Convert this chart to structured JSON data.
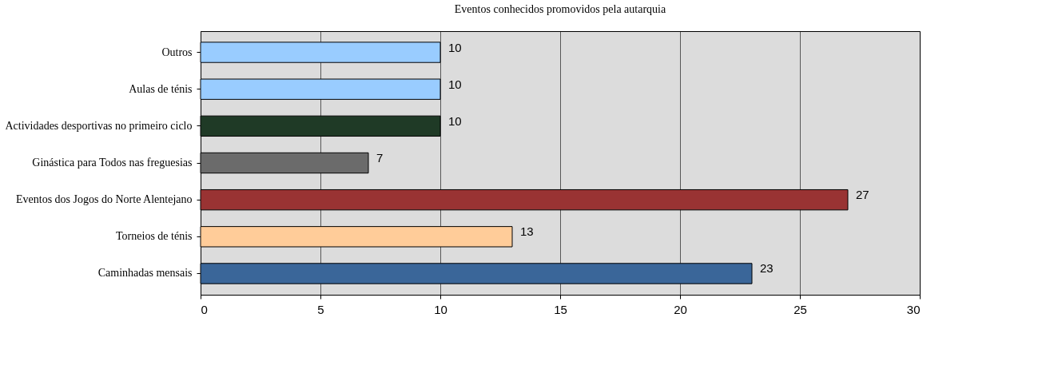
{
  "chart_data": {
    "type": "bar",
    "orientation": "horizontal",
    "title": "Eventos conhecidos promovidos pela autarquia",
    "categories": [
      "Outros",
      "Aulas de ténis",
      "Actividades desportivas no primeiro ciclo",
      "Ginástica para Todos nas freguesias",
      "Eventos dos Jogos do Norte Alentejano",
      "Torneios de ténis",
      "Caminhadas mensais"
    ],
    "values": [
      10,
      10,
      10,
      7,
      27,
      13,
      23
    ],
    "colors": [
      "#99ccff",
      "#99ccff",
      "#1f3a26",
      "#6b6b6b",
      "#993333",
      "#ffcc99",
      "#3a6699"
    ],
    "xlim": [
      0,
      30
    ],
    "xticks": [
      0,
      5,
      10,
      15,
      20,
      25,
      30
    ],
    "grid": "x",
    "data_labels": true
  }
}
